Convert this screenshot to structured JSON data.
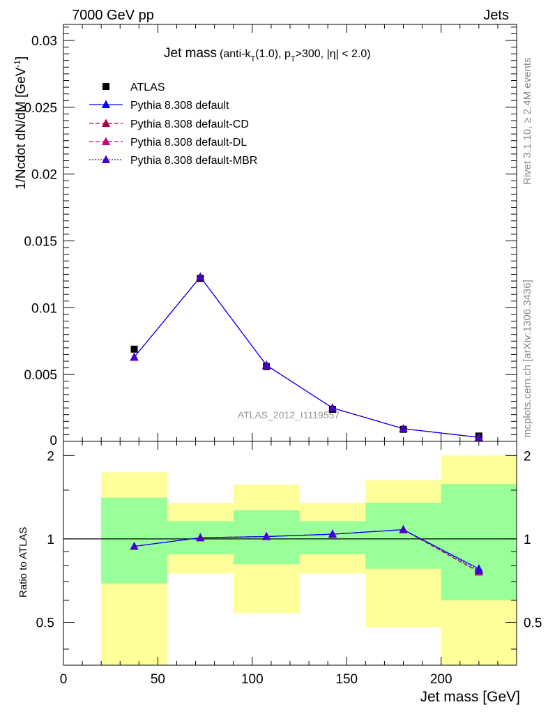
{
  "header": {
    "left": "7000 GeV pp",
    "right": "Jets"
  },
  "side_text": {
    "rivet": "Rivet 3.1.10, ≥ 2.4M events",
    "mcplots": "mcplots.cern.ch [arXiv:1306.3436]"
  },
  "colors": {
    "data": "#000000",
    "default": "#0000ff",
    "default_cd": "#aa0044",
    "default_dl": "#cc0077",
    "default_mbr": "#4400cc",
    "band_inner": "#99ff99",
    "band_outer": "#ffff99"
  },
  "chart_data": [
    {
      "type": "line",
      "title_main": "Jet mass",
      "title_sub": "(anti-k",
      "title_sub_T": "T",
      "title_sub_mid": "(1.0), p",
      "title_sub_T2": "T",
      "title_sub_end": ">300, |η| < 2.0)",
      "ylabel": "1/Ncdot dN/dM [GeV",
      "ylabel_sup": "-1",
      "ylabel_end": "]",
      "watermark": "ATLAS_2012_I1119557",
      "xlim": [
        0,
        240
      ],
      "ylim": [
        0,
        0.0312
      ],
      "yticks": [
        0.005,
        0.01,
        0.015,
        0.02,
        0.025,
        0.03
      ],
      "ytick_labels": [
        "0.005",
        "0.01",
        "0.015",
        "0.02",
        "0.025",
        "0.03"
      ],
      "ytick_zero_label": "0",
      "bins": [
        [
          20,
          55
        ],
        [
          55,
          90
        ],
        [
          90,
          125
        ],
        [
          125,
          160
        ],
        [
          160,
          200
        ],
        [
          200,
          240
        ]
      ],
      "x": [
        37.5,
        72.5,
        107.5,
        142.5,
        180,
        220
      ],
      "legend_position": "top-left",
      "series": [
        {
          "name": "ATLAS",
          "marker": "square",
          "values": [
            0.0069,
            0.0122,
            0.0056,
            0.0024,
            0.0009,
            0.0004
          ]
        },
        {
          "name": "Pythia 8.308 default",
          "marker": "triangle",
          "line": "solid",
          "values": [
            0.0063,
            0.0123,
            0.0057,
            0.0025,
            0.00095,
            0.0003
          ]
        },
        {
          "name": "Pythia 8.308 default-CD",
          "marker": "triangle",
          "line": "dashed",
          "values": [
            0.0063,
            0.0123,
            0.0057,
            0.0025,
            0.00095,
            0.0003
          ]
        },
        {
          "name": "Pythia 8.308 default-DL",
          "marker": "triangle",
          "line": "dashed",
          "values": [
            0.0063,
            0.0123,
            0.0057,
            0.0025,
            0.00095,
            0.0003
          ]
        },
        {
          "name": "Pythia 8.308 default-MBR",
          "marker": "triangle",
          "line": "dotted",
          "values": [
            0.0063,
            0.0123,
            0.0057,
            0.0025,
            0.00095,
            0.0003
          ]
        }
      ]
    },
    {
      "type": "line",
      "ylabel": "Ratio to ATLAS",
      "xlabel": "Jet mass [GeV]",
      "xlim": [
        0,
        240
      ],
      "ylim": [
        0.35,
        2.25
      ],
      "xticks": [
        0,
        50,
        100,
        150,
        200
      ],
      "xtick_labels": [
        "0",
        "50",
        "100",
        "150",
        "200"
      ],
      "yticks": [
        0.5,
        1,
        2
      ],
      "ytick_labels": [
        "0.5",
        "1",
        "2"
      ],
      "bins": [
        [
          20,
          55
        ],
        [
          55,
          90
        ],
        [
          90,
          125
        ],
        [
          125,
          160
        ],
        [
          160,
          200
        ],
        [
          200,
          240
        ]
      ],
      "band_inner": [
        [
          0.69,
          1.41
        ],
        [
          0.88,
          1.16
        ],
        [
          0.81,
          1.27
        ],
        [
          0.88,
          1.16
        ],
        [
          0.78,
          1.35
        ],
        [
          0.6,
          1.58
        ]
      ],
      "band_outer": [
        [
          0.35,
          1.74
        ],
        [
          0.75,
          1.35
        ],
        [
          0.54,
          1.57
        ],
        [
          0.75,
          1.35
        ],
        [
          0.48,
          1.63
        ],
        [
          0.35,
          2.0
        ]
      ],
      "x": [
        37.5,
        72.5,
        107.5,
        142.5,
        180,
        220
      ],
      "series": [
        {
          "name": "Pythia 8.308 default",
          "values": [
            0.94,
            1.01,
            1.02,
            1.04,
            1.08,
            0.78
          ]
        },
        {
          "name": "Pythia 8.308 default-CD",
          "values": [
            0.94,
            1.01,
            1.02,
            1.04,
            1.08,
            0.76
          ]
        },
        {
          "name": "Pythia 8.308 default-DL",
          "values": [
            0.94,
            1.01,
            1.02,
            1.04,
            1.08,
            0.76
          ]
        },
        {
          "name": "Pythia 8.308 default-MBR",
          "values": [
            0.94,
            1.01,
            1.02,
            1.04,
            1.08,
            0.77
          ]
        }
      ]
    }
  ]
}
